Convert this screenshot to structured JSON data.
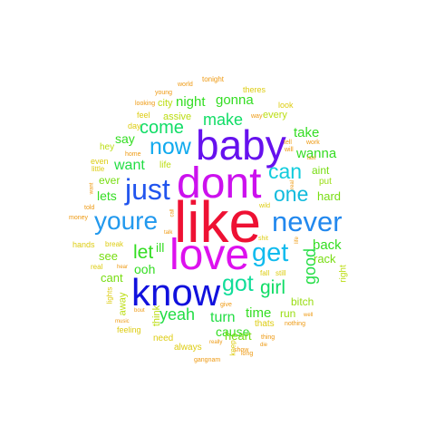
{
  "word_cloud": {
    "words": [
      {
        "text": "like",
        "color": "#ee1133"
      },
      {
        "text": "dont",
        "color": "#cc11ee"
      },
      {
        "text": "baby",
        "color": "#6611ee"
      },
      {
        "text": "love",
        "color": "#dd11ee"
      },
      {
        "text": "know",
        "color": "#1111dd"
      },
      {
        "text": "youre",
        "color": "#2299ee"
      },
      {
        "text": "never",
        "color": "#2288ee"
      },
      {
        "text": "just",
        "color": "#2255ee"
      },
      {
        "text": "get",
        "color": "#11bbee"
      },
      {
        "text": "now",
        "color": "#11aaee"
      },
      {
        "text": "got",
        "color": "#11dd99"
      },
      {
        "text": "one",
        "color": "#11bbdd"
      },
      {
        "text": "can",
        "color": "#11ccdd"
      },
      {
        "text": "girl",
        "color": "#11dd66"
      },
      {
        "text": "come",
        "color": "#11dd66"
      },
      {
        "text": "make",
        "color": "#11dd66"
      },
      {
        "text": "let",
        "color": "#33dd22"
      },
      {
        "text": "yeah",
        "color": "#22dd44"
      },
      {
        "text": "want",
        "color": "#22dd44"
      },
      {
        "text": "turn",
        "color": "#22dd44"
      },
      {
        "text": "good",
        "color": "#22dd44"
      },
      {
        "text": "night",
        "color": "#33dd22"
      },
      {
        "text": "gonna",
        "color": "#33dd22"
      },
      {
        "text": "wanna",
        "color": "#33dd22"
      },
      {
        "text": "time",
        "color": "#33dd22"
      },
      {
        "text": "take",
        "color": "#33dd22"
      },
      {
        "text": "back",
        "color": "#33dd22"
      },
      {
        "text": "cause",
        "color": "#33dd22"
      },
      {
        "text": "lets",
        "color": "#33dd22"
      },
      {
        "text": "say",
        "color": "#33dd22"
      },
      {
        "text": "ooh",
        "color": "#33dd22"
      },
      {
        "text": "ill",
        "color": "#33dd22"
      },
      {
        "text": "see",
        "color": "#77dd11"
      },
      {
        "text": "cant",
        "color": "#77dd11"
      },
      {
        "text": "heart",
        "color": "#77dd11"
      },
      {
        "text": "rack",
        "color": "#77dd11"
      },
      {
        "text": "hard",
        "color": "#77dd11"
      },
      {
        "text": "aint",
        "color": "#77dd11"
      },
      {
        "text": "ever",
        "color": "#77dd11"
      },
      {
        "text": "bitch",
        "color": "#99dd11"
      },
      {
        "text": "run",
        "color": "#99dd11"
      },
      {
        "text": "put",
        "color": "#99dd11"
      },
      {
        "text": "every",
        "color": "#bbdd11"
      },
      {
        "text": "city",
        "color": "#bbdd11"
      },
      {
        "text": "assive",
        "color": "#bbdd11"
      },
      {
        "text": "right",
        "color": "#bbdd11"
      },
      {
        "text": "away",
        "color": "#bbdd11"
      },
      {
        "text": "think",
        "color": "#bbdd11"
      },
      {
        "text": "hey",
        "color": "#bbdd11"
      },
      {
        "text": "life",
        "color": "#bbdd11"
      },
      {
        "text": "need",
        "color": "#ddcc11"
      },
      {
        "text": "always",
        "color": "#ddcc11"
      },
      {
        "text": "thats",
        "color": "#ddcc11"
      },
      {
        "text": "look",
        "color": "#ddcc11"
      },
      {
        "text": "feel",
        "color": "#ddcc11"
      },
      {
        "text": "day",
        "color": "#ddcc11"
      },
      {
        "text": "theres",
        "color": "#ddcc11"
      },
      {
        "text": "even",
        "color": "#ddcc11"
      },
      {
        "text": "little",
        "color": "#ddcc11"
      },
      {
        "text": "hands",
        "color": "#ddcc11"
      },
      {
        "text": "real",
        "color": "#ddcc11"
      },
      {
        "text": "feeling",
        "color": "#ddcc11"
      },
      {
        "text": "fall",
        "color": "#ddcc11"
      },
      {
        "text": "still",
        "color": "#ddcc11"
      },
      {
        "text": "keep",
        "color": "#ddcc11"
      },
      {
        "text": "break",
        "color": "#ddcc11"
      },
      {
        "text": "lights",
        "color": "#ddcc11"
      },
      {
        "text": "wild",
        "color": "#ddcc11"
      },
      {
        "text": "shit",
        "color": "#ddcc11"
      },
      {
        "text": "tonight",
        "color": "#ee9911"
      },
      {
        "text": "world",
        "color": "#ee9911"
      },
      {
        "text": "young",
        "color": "#ee9911"
      },
      {
        "text": "looking",
        "color": "#ee9911"
      },
      {
        "text": "home",
        "color": "#ee9911"
      },
      {
        "text": "way",
        "color": "#ee9911"
      },
      {
        "text": "work",
        "color": "#ee9911"
      },
      {
        "text": "tell",
        "color": "#ee9911"
      },
      {
        "text": "will",
        "color": "#ee9911"
      },
      {
        "text": "last",
        "color": "#ee9911"
      },
      {
        "text": "real",
        "color": "#ee9911"
      },
      {
        "text": "want",
        "color": "#ee9911"
      },
      {
        "text": "told",
        "color": "#ee9911"
      },
      {
        "text": "money",
        "color": "#ee9911"
      },
      {
        "text": "call",
        "color": "#ee9911"
      },
      {
        "text": "talk",
        "color": "#ee9911"
      },
      {
        "text": "life",
        "color": "#ee9911"
      },
      {
        "text": "hear",
        "color": "#ee9911"
      },
      {
        "text": "bout",
        "color": "#ee9911"
      },
      {
        "text": "music",
        "color": "#ee9911"
      },
      {
        "text": "give",
        "color": "#ee9911"
      },
      {
        "text": "really",
        "color": "#ee9911"
      },
      {
        "text": "show",
        "color": "#ee9911"
      },
      {
        "text": "long",
        "color": "#ee9911"
      },
      {
        "text": "thing",
        "color": "#ee9911"
      },
      {
        "text": "die",
        "color": "#ee9911"
      },
      {
        "text": "well",
        "color": "#ee9911"
      },
      {
        "text": "nothing",
        "color": "#ee9911"
      },
      {
        "text": "gangnam",
        "color": "#ee9911"
      }
    ]
  }
}
